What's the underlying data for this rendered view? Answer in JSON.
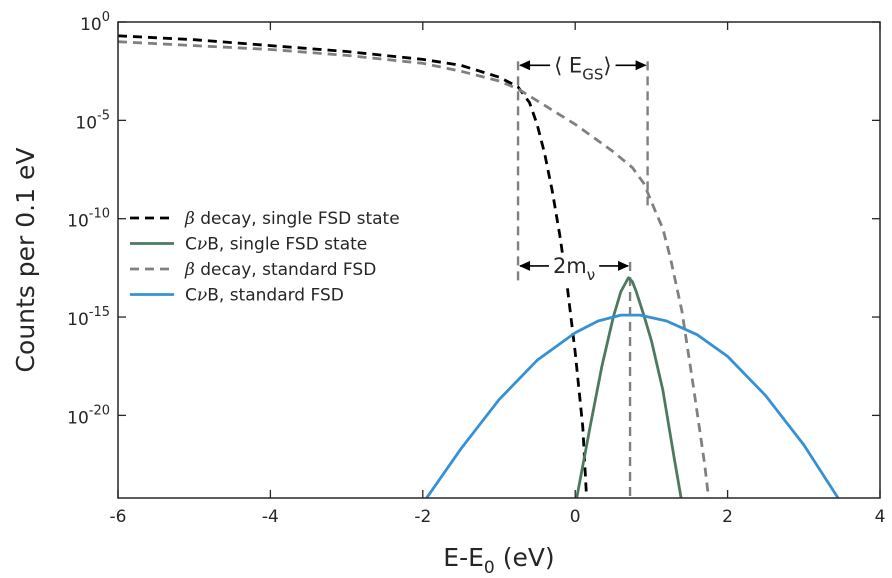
{
  "chart_data": {
    "type": "line",
    "xlabel": "E-E",
    "xlabel_sub": "0",
    "xlabel_unit": " (eV)",
    "ylabel": "Counts per 0.1 eV",
    "xlim": [
      -6,
      4
    ],
    "ylim_log10": [
      -24.2,
      0
    ],
    "y_scale": "log",
    "grid": false,
    "legend_position": "left-middle",
    "x_ticks": [
      {
        "value": -6,
        "label": "-6"
      },
      {
        "value": -4,
        "label": "-4"
      },
      {
        "value": -2,
        "label": "-2"
      },
      {
        "value": 0,
        "label": "0"
      },
      {
        "value": 2,
        "label": "2"
      },
      {
        "value": 4,
        "label": "4"
      }
    ],
    "y_ticks": [
      {
        "exp": 0,
        "base": "10",
        "sup": "0"
      },
      {
        "exp": -5,
        "base": "10",
        "sup": "-5"
      },
      {
        "exp": -10,
        "base": "10",
        "sup": "-10"
      },
      {
        "exp": -15,
        "base": "10",
        "sup": "-15"
      },
      {
        "exp": -20,
        "base": "10",
        "sup": "-20"
      }
    ],
    "series": [
      {
        "name_greek": "β",
        "name_rest": " decay, single FSD state",
        "color": "#000000",
        "dash": "dashed",
        "x": [
          -6,
          -5,
          -4,
          -3,
          -2,
          -1.5,
          -1,
          -0.75,
          -0.6,
          -0.5,
          -0.4,
          -0.3,
          -0.2,
          -0.1,
          0,
          0.1,
          0.15
        ],
        "log10_y": [
          -0.7,
          -0.9,
          -1.2,
          -1.5,
          -1.9,
          -2.2,
          -2.8,
          -3.3,
          -4.1,
          -5.2,
          -6.7,
          -8.6,
          -10.9,
          -13.6,
          -16.8,
          -20.6,
          -24.2
        ]
      },
      {
        "name_pre": "C",
        "name_greek": "ν",
        "name_rest": "B, single FSD state",
        "color": "#4c7a5e",
        "dash": "solid",
        "x": [
          0.02,
          0.2,
          0.35,
          0.5,
          0.6,
          0.7,
          0.75,
          0.8,
          0.9,
          1.0,
          1.15,
          1.3,
          1.39
        ],
        "log10_y": [
          -24.2,
          -20.5,
          -17.5,
          -15.0,
          -13.7,
          -13.0,
          -13.2,
          -13.7,
          -14.9,
          -16.2,
          -18.7,
          -22.2,
          -24.2
        ]
      },
      {
        "name_greek": "β",
        "name_rest": " decay, standard FSD",
        "color": "#808080",
        "dash": "dashed",
        "x": [
          -6,
          -5,
          -4,
          -3,
          -2,
          -1.5,
          -1,
          -0.75,
          -0.5,
          -0.25,
          0,
          0.25,
          0.5,
          0.75,
          0.9,
          1.05,
          1.15,
          1.25,
          1.4,
          1.55,
          1.7,
          1.75
        ],
        "log10_y": [
          -1.0,
          -1.2,
          -1.4,
          -1.7,
          -2.1,
          -2.5,
          -3.0,
          -3.4,
          -4.0,
          -4.6,
          -5.2,
          -5.9,
          -6.6,
          -7.4,
          -8.2,
          -9.6,
          -10.5,
          -12.0,
          -14.7,
          -18.5,
          -22.5,
          -24.2
        ]
      },
      {
        "name_pre": "C",
        "name_greek": "ν",
        "name_rest": "B, standard FSD",
        "color": "#3590d4",
        "dash": "solid",
        "x": [
          -1.95,
          -1.5,
          -1.0,
          -0.5,
          0,
          0.3,
          0.6,
          0.85,
          1.2,
          1.6,
          2.0,
          2.5,
          3.0,
          3.45
        ],
        "log10_y": [
          -24.2,
          -21.7,
          -19.2,
          -17.2,
          -15.8,
          -15.2,
          -14.9,
          -14.9,
          -15.2,
          -15.9,
          -17.0,
          -19.0,
          -21.5,
          -24.2
        ]
      }
    ],
    "annotations": [
      {
        "name": "ground-state-energy-bracket",
        "text_pre": "⟨ E",
        "text_sub": "GS",
        "text_post": "⟩",
        "x_start": -0.75,
        "x_end": 0.95,
        "log10_y_arrow": -2.2,
        "log10_y_line_top": -2.0
      },
      {
        "name": "neutrino-mass-bracket",
        "text_pre": "2m",
        "text_sub": "ν",
        "text_post": "",
        "x_start": -0.75,
        "x_end": 0.72,
        "log10_y_arrow": -12.4,
        "log10_y_line_top": -12.2
      }
    ],
    "verticals": [
      {
        "x": -0.75,
        "log10_y_top": -2.0,
        "log10_y_bottom": -13.2,
        "color": "#808080"
      },
      {
        "x": 0.95,
        "log10_y_top": -2.0,
        "log10_y_bottom": -9.6,
        "color": "#808080"
      },
      {
        "x": 0.72,
        "log10_y_top": -12.2,
        "log10_y_bottom": -24.2,
        "color": "#808080"
      }
    ]
  }
}
